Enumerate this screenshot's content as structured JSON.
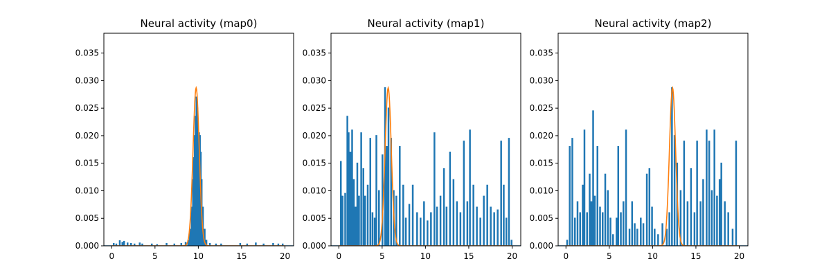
{
  "chart_data": [
    {
      "type": "line",
      "title": "Neural activity (map0)",
      "xlabel": "",
      "ylabel": "",
      "xlim": [
        -0.9,
        21
      ],
      "ylim": [
        0,
        0.0386
      ],
      "xticks": [
        0,
        5,
        10,
        15,
        20
      ],
      "yticks": [
        0,
        0.005,
        0.01,
        0.015,
        0.02,
        0.025,
        0.03,
        0.035
      ],
      "ytick_labels": [
        "0.000",
        "0.005",
        "0.010",
        "0.015",
        "0.020",
        "0.025",
        "0.030",
        "0.035"
      ],
      "grid": false,
      "series": [
        {
          "kind": "activity",
          "color": "#1f77b4",
          "spikes": [
            [
              0.2,
              0.0004
            ],
            [
              0.5,
              0.0003
            ],
            [
              0.9,
              0.0009
            ],
            [
              1.2,
              0.0006
            ],
            [
              1.4,
              0.0008
            ],
            [
              1.8,
              0.0005
            ],
            [
              2.2,
              0.0004
            ],
            [
              2.6,
              0.0003
            ],
            [
              3.2,
              0.0005
            ],
            [
              3.5,
              0.0003
            ],
            [
              4.6,
              0.0003
            ],
            [
              5.2,
              0.0002
            ],
            [
              6.3,
              0.0004
            ],
            [
              7.2,
              0.0003
            ],
            [
              8.0,
              0.0004
            ],
            [
              8.5,
              0.0006
            ],
            [
              8.8,
              0.001
            ],
            [
              9.0,
              0.003
            ],
            [
              9.2,
              0.007
            ],
            [
              9.35,
              0.012
            ],
            [
              9.45,
              0.016
            ],
            [
              9.55,
              0.02
            ],
            [
              9.65,
              0.0235
            ],
            [
              9.75,
              0.027
            ],
            [
              9.85,
              0.025
            ],
            [
              9.95,
              0.021
            ],
            [
              10.05,
              0.0205
            ],
            [
              10.15,
              0.02
            ],
            [
              10.25,
              0.017
            ],
            [
              10.35,
              0.012
            ],
            [
              10.5,
              0.007
            ],
            [
              10.7,
              0.003
            ],
            [
              10.9,
              0.001
            ],
            [
              11.3,
              0.0004
            ],
            [
              12.0,
              0.0003
            ],
            [
              12.6,
              0.0003
            ],
            [
              14.8,
              0.0004
            ],
            [
              15.6,
              0.0003
            ],
            [
              16.6,
              0.0005
            ],
            [
              17.5,
              0.0003
            ],
            [
              18.6,
              0.0004
            ],
            [
              19.2,
              0.0003
            ],
            [
              19.7,
              0.0003
            ]
          ]
        },
        {
          "kind": "gaussian",
          "color": "#ff7f0e",
          "center": 9.75,
          "sigma": 0.36,
          "peak": 0.0287
        }
      ]
    },
    {
      "type": "line",
      "title": "Neural activity (map1)",
      "xlabel": "",
      "ylabel": "",
      "xlim": [
        -0.9,
        21
      ],
      "ylim": [
        0,
        0.0386
      ],
      "xticks": [
        0,
        5,
        10,
        15,
        20
      ],
      "yticks": [
        0,
        0.005,
        0.01,
        0.015,
        0.02,
        0.025,
        0.03,
        0.035
      ],
      "ytick_labels": [
        "0.000",
        "0.005",
        "0.010",
        "0.015",
        "0.020",
        "0.025",
        "0.030",
        "0.035"
      ],
      "grid": false,
      "series": [
        {
          "kind": "activity",
          "color": "#1f77b4",
          "spikes": [
            [
              0.2,
              0.0153
            ],
            [
              0.4,
              0.009
            ],
            [
              0.7,
              0.0095
            ],
            [
              0.95,
              0.0235
            ],
            [
              1.1,
              0.0205
            ],
            [
              1.3,
              0.017
            ],
            [
              1.5,
              0.021
            ],
            [
              1.7,
              0.012
            ],
            [
              1.9,
              0.007
            ],
            [
              2.1,
              0.015
            ],
            [
              2.3,
              0.009
            ],
            [
              2.55,
              0.0205
            ],
            [
              2.8,
              0.014
            ],
            [
              3.0,
              0.009
            ],
            [
              3.3,
              0.011
            ],
            [
              3.6,
              0.0195
            ],
            [
              3.85,
              0.006
            ],
            [
              4.1,
              0.005
            ],
            [
              4.3,
              0.02
            ],
            [
              4.6,
              0.01
            ],
            [
              5.0,
              0.0165
            ],
            [
              5.3,
              0.0287
            ],
            [
              5.5,
              0.018
            ],
            [
              5.7,
              0.025
            ],
            [
              6.0,
              0.0195
            ],
            [
              6.3,
              0.01
            ],
            [
              6.6,
              0.009
            ],
            [
              7.0,
              0.018
            ],
            [
              7.4,
              0.011
            ],
            [
              7.7,
              0.005
            ],
            [
              8.1,
              0.0075
            ],
            [
              8.5,
              0.011
            ],
            [
              9.0,
              0.006
            ],
            [
              9.4,
              0.005
            ],
            [
              9.8,
              0.008
            ],
            [
              10.2,
              0.0045
            ],
            [
              10.6,
              0.006
            ],
            [
              11.0,
              0.0205
            ],
            [
              11.3,
              0.007
            ],
            [
              11.7,
              0.009
            ],
            [
              12.1,
              0.014
            ],
            [
              12.4,
              0.007
            ],
            [
              12.8,
              0.017
            ],
            [
              13.2,
              0.012
            ],
            [
              13.6,
              0.008
            ],
            [
              14.0,
              0.006
            ],
            [
              14.4,
              0.019
            ],
            [
              14.8,
              0.008
            ],
            [
              15.1,
              0.021
            ],
            [
              15.5,
              0.011
            ],
            [
              15.9,
              0.007
            ],
            [
              16.3,
              0.005
            ],
            [
              16.7,
              0.009
            ],
            [
              17.1,
              0.011
            ],
            [
              17.5,
              0.007
            ],
            [
              17.9,
              0.006
            ],
            [
              18.3,
              0.0065
            ],
            [
              18.7,
              0.019
            ],
            [
              19.0,
              0.011
            ],
            [
              19.3,
              0.005
            ],
            [
              19.6,
              0.0195
            ],
            [
              19.9,
              0.001
            ]
          ]
        },
        {
          "kind": "gaussian",
          "color": "#ff7f0e",
          "center": 5.7,
          "sigma": 0.36,
          "peak": 0.0287
        }
      ]
    },
    {
      "type": "line",
      "title": "Neural activity (map2)",
      "xlabel": "",
      "ylabel": "",
      "xlim": [
        -0.9,
        21
      ],
      "ylim": [
        0,
        0.0386
      ],
      "xticks": [
        0,
        5,
        10,
        15,
        20
      ],
      "yticks": [
        0,
        0.005,
        0.01,
        0.015,
        0.02,
        0.025,
        0.03,
        0.035
      ],
      "ytick_labels": [
        "0.000",
        "0.005",
        "0.010",
        "0.015",
        "0.020",
        "0.025",
        "0.030",
        "0.035"
      ],
      "grid": false,
      "series": [
        {
          "kind": "activity",
          "color": "#1f77b4",
          "spikes": [
            [
              0.1,
              0.001
            ],
            [
              0.4,
              0.018
            ],
            [
              0.7,
              0.0195
            ],
            [
              1.0,
              0.005
            ],
            [
              1.3,
              0.008
            ],
            [
              1.6,
              0.006
            ],
            [
              1.9,
              0.011
            ],
            [
              2.1,
              0.021
            ],
            [
              2.4,
              0.006
            ],
            [
              2.7,
              0.013
            ],
            [
              2.9,
              0.008
            ],
            [
              3.1,
              0.0245
            ],
            [
              3.3,
              0.009
            ],
            [
              3.6,
              0.018
            ],
            [
              3.9,
              0.007
            ],
            [
              4.2,
              0.006
            ],
            [
              4.5,
              0.013
            ],
            [
              4.8,
              0.01
            ],
            [
              5.1,
              0.005
            ],
            [
              5.4,
              0.002
            ],
            [
              5.8,
              0.005
            ],
            [
              6.0,
              0.018
            ],
            [
              6.3,
              0.006
            ],
            [
              6.6,
              0.008
            ],
            [
              6.9,
              0.021
            ],
            [
              7.3,
              0.003
            ],
            [
              7.6,
              0.008
            ],
            [
              7.9,
              0.004
            ],
            [
              8.2,
              0.003
            ],
            [
              8.6,
              0.005
            ],
            [
              8.9,
              0.004
            ],
            [
              9.3,
              0.013
            ],
            [
              9.6,
              0.014
            ],
            [
              9.9,
              0.007
            ],
            [
              10.2,
              0.003
            ],
            [
              10.6,
              0.002
            ],
            [
              11.1,
              0.004
            ],
            [
              11.6,
              0.003
            ],
            [
              11.9,
              0.006
            ],
            [
              12.2,
              0.0287
            ],
            [
              12.5,
              0.02
            ],
            [
              12.8,
              0.015
            ],
            [
              13.2,
              0.01
            ],
            [
              13.6,
              0.019
            ],
            [
              14.0,
              0.008
            ],
            [
              14.4,
              0.014
            ],
            [
              14.8,
              0.006
            ],
            [
              15.1,
              0.019
            ],
            [
              15.5,
              0.008
            ],
            [
              15.8,
              0.012
            ],
            [
              16.2,
              0.021
            ],
            [
              16.5,
              0.019
            ],
            [
              16.8,
              0.01
            ],
            [
              17.1,
              0.021
            ],
            [
              17.4,
              0.009
            ],
            [
              17.7,
              0.012
            ],
            [
              17.9,
              0.015
            ],
            [
              18.3,
              0.008
            ],
            [
              18.7,
              0.006
            ],
            [
              19.2,
              0.003
            ],
            [
              19.6,
              0.019
            ]
          ]
        },
        {
          "kind": "gaussian",
          "color": "#ff7f0e",
          "center": 12.3,
          "sigma": 0.36,
          "peak": 0.0287
        }
      ]
    }
  ]
}
